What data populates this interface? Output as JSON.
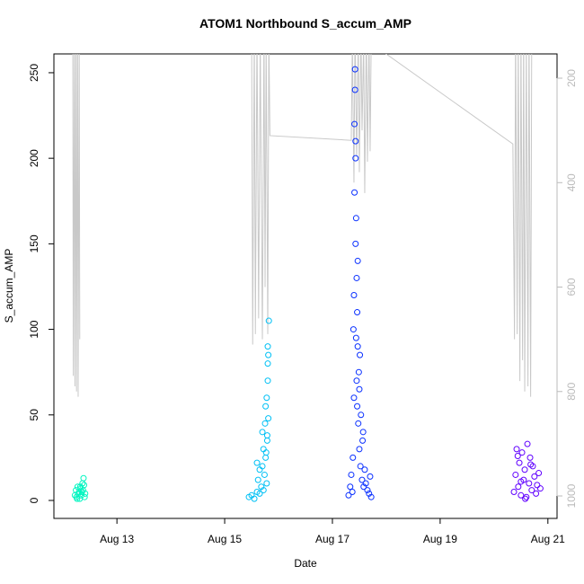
{
  "chart_data": {
    "type": "scatter",
    "title": "ATOM1 Northbound S_accum_AMP",
    "x_label": "Date",
    "y_label": "S_accum_AMP",
    "xlim": [
      11.83,
      21.17
    ],
    "xticks": [
      {
        "value": 13,
        "label": "Aug 13"
      },
      {
        "value": 15,
        "label": "Aug 15"
      },
      {
        "value": 17,
        "label": "Aug 17"
      },
      {
        "value": 19,
        "label": "Aug 19"
      },
      {
        "value": 21,
        "label": "Aug 21"
      }
    ],
    "ylim": [
      -10.5,
      261
    ],
    "yticks": [
      0,
      50,
      100,
      150,
      200,
      250
    ],
    "y2lim": [
      1043,
      153.5
    ],
    "y2ticks": [
      200,
      400,
      600,
      800,
      1000
    ],
    "y2_color": "#bbbbbb",
    "series": [
      {
        "color": "#00f5c0",
        "x": [
          12.22,
          12.24,
          12.25,
          12.27,
          12.28,
          12.3,
          12.31,
          12.33,
          12.34,
          12.36,
          12.37,
          12.38,
          12.39,
          12.4,
          12.41,
          12.26,
          12.32,
          12.35
        ],
        "values": [
          3,
          6,
          2,
          8,
          4,
          5,
          1,
          7,
          3,
          10,
          6,
          13,
          9,
          2,
          4,
          1,
          8,
          5
        ]
      },
      {
        "color": "#00c0f5",
        "x": [
          15.45,
          15.5,
          15.55,
          15.6,
          15.62,
          15.65,
          15.68,
          15.7,
          15.72,
          15.74,
          15.75,
          15.76,
          15.78,
          15.79,
          15.8,
          15.8,
          15.81,
          15.82,
          15.78,
          15.76,
          15.7,
          15.65,
          15.6,
          15.72,
          15.77,
          15.8,
          15.81,
          15.79
        ],
        "values": [
          2,
          3,
          1,
          5,
          12,
          4,
          8,
          20,
          30,
          15,
          45,
          25,
          60,
          35,
          80,
          90,
          85,
          105,
          10,
          55,
          40,
          18,
          22,
          6,
          28,
          70,
          48,
          38
        ]
      },
      {
        "color": "#0a30ff",
        "x": [
          17.3,
          17.33,
          17.35,
          17.37,
          17.38,
          17.4,
          17.4,
          17.41,
          17.42,
          17.42,
          17.43,
          17.43,
          17.44,
          17.45,
          17.45,
          17.46,
          17.47,
          17.48,
          17.5,
          17.5,
          17.52,
          17.55,
          17.57,
          17.58,
          17.6,
          17.62,
          17.65,
          17.68,
          17.7,
          17.72,
          17.41,
          17.44,
          17.46,
          17.49,
          17.53,
          17.56,
          17.39,
          17.43,
          17.47,
          17.51
        ],
        "values": [
          3,
          8,
          15,
          5,
          25,
          60,
          120,
          180,
          252,
          240,
          200,
          150,
          95,
          70,
          130,
          55,
          90,
          45,
          30,
          65,
          20,
          12,
          40,
          8,
          18,
          10,
          6,
          4,
          14,
          2,
          220,
          165,
          110,
          75,
          50,
          35,
          100,
          210,
          140,
          85
        ]
      },
      {
        "color": "#6000ff",
        "x": [
          20.37,
          20.4,
          20.42,
          20.45,
          20.47,
          20.5,
          20.52,
          20.55,
          20.57,
          20.6,
          20.62,
          20.65,
          20.67,
          20.7,
          20.72,
          20.75,
          20.78,
          20.8,
          20.83,
          20.86,
          20.44,
          20.58,
          20.68,
          20.5
        ],
        "values": [
          5,
          15,
          30,
          8,
          22,
          3,
          28,
          12,
          18,
          2,
          33,
          10,
          25,
          6,
          20,
          14,
          4,
          9,
          16,
          7,
          26,
          1,
          21,
          11
        ]
      },
      {
        "type": "line",
        "axis": "y2",
        "color": "#c8c8c8",
        "x": [
          12.18,
          12.19,
          12.21,
          12.22,
          12.24,
          12.25,
          12.27,
          12.28,
          12.3,
          12.31,
          13.5,
          15.5,
          15.52,
          15.55,
          15.57,
          15.6,
          15.63,
          15.66,
          15.7,
          15.73,
          15.75,
          15.77,
          15.8,
          15.82,
          15.84,
          17.35,
          17.37,
          17.4,
          17.42,
          17.45,
          17.48,
          17.5,
          17.53,
          17.55,
          17.58,
          17.6,
          17.63,
          17.65,
          17.68,
          17.7,
          17.72,
          17.95,
          20.35,
          20.38,
          20.4,
          20.43,
          20.45,
          20.48,
          20.5,
          20.53,
          20.55,
          20.57,
          20.6,
          20.63,
          20.65,
          20.68,
          20.7
        ],
        "values": [
          100,
          770,
          100,
          790,
          120,
          800,
          100,
          810,
          130,
          700,
          null,
          100,
          710,
          110,
          690,
          100,
          660,
          120,
          700,
          110,
          600,
          130,
          690,
          120,
          310,
          319,
          130,
          400,
          100,
          350,
          120,
          380,
          110,
          300,
          130,
          420,
          100,
          360,
          120,
          340,
          130,
          150,
          326,
          700,
          100,
          690,
          120,
          780,
          110,
          740,
          100,
          800,
          130,
          790,
          100,
          810,
          120
        ]
      }
    ]
  }
}
